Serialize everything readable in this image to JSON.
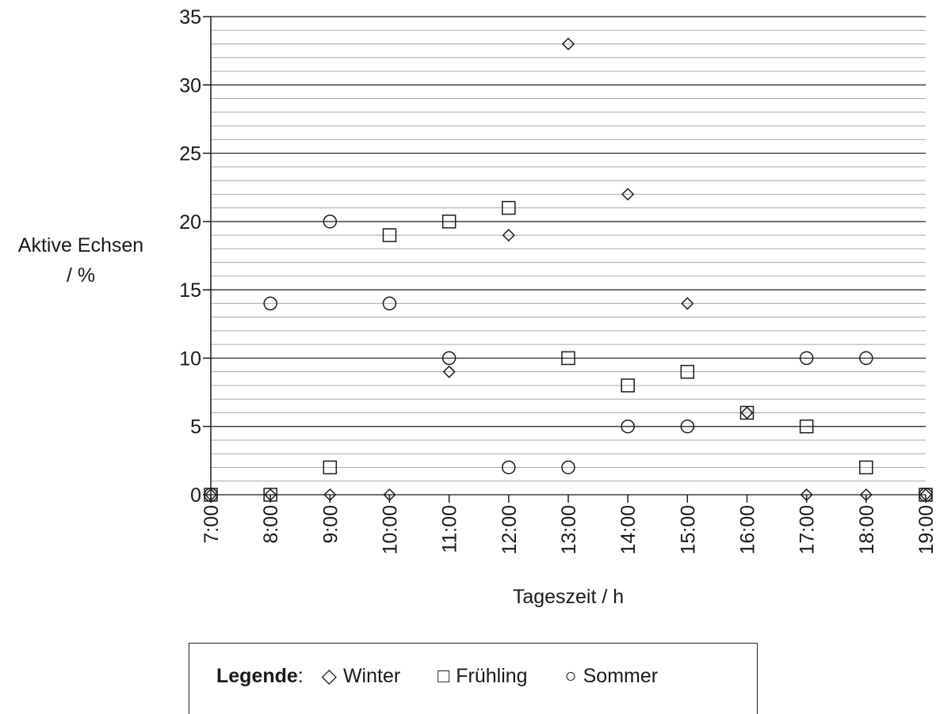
{
  "chart_data": {
    "type": "scatter",
    "xlabel": "Tageszeit / h",
    "ylabel_lines": [
      "Aktive Echsen",
      "/ %"
    ],
    "x_categories": [
      "7:00",
      "8:00",
      "9:00",
      "10:00",
      "11:00",
      "12:00",
      "13:00",
      "14:00",
      "15:00",
      "16:00",
      "17:00",
      "18:00",
      "19:00"
    ],
    "ylim": [
      0,
      35
    ],
    "y_ticks": [
      0,
      5,
      10,
      15,
      20,
      25,
      30,
      35
    ],
    "minor_grid_step": 1,
    "grid": true,
    "series": [
      {
        "name": "Winter",
        "marker": "diamond",
        "values": [
          0,
          0,
          0,
          0,
          9,
          19,
          33,
          22,
          14,
          6,
          0,
          0,
          0
        ]
      },
      {
        "name": "Frühling",
        "marker": "square",
        "values": [
          0,
          0,
          2,
          19,
          20,
          21,
          10,
          8,
          9,
          6,
          5,
          2,
          0
        ]
      },
      {
        "name": "Sommer",
        "marker": "circle",
        "values": [
          0,
          14,
          20,
          14,
          10,
          2,
          2,
          5,
          5,
          null,
          10,
          10,
          0
        ]
      }
    ]
  },
  "legend": {
    "title": "Legende",
    "separator": ":",
    "items": [
      {
        "symbol": "◇",
        "label": "Winter"
      },
      {
        "symbol": "□",
        "label": "Frühling"
      },
      {
        "symbol": "○",
        "label": "Sommer"
      }
    ]
  }
}
